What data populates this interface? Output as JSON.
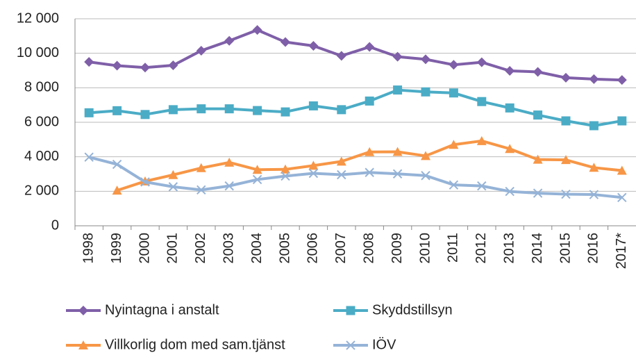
{
  "chart_data": {
    "type": "line",
    "categories": [
      "1998",
      "1999",
      "2000",
      "2001",
      "2002",
      "2003",
      "2004",
      "2005",
      "2006",
      "2007",
      "2008",
      "2009",
      "2010",
      "2011",
      "2012",
      "2013",
      "2014",
      "2015",
      "2016",
      "2017*"
    ],
    "series": [
      {
        "name": "Nyintagna i anstalt",
        "color": "#7f5fa8",
        "marker": "diamond",
        "values": [
          9500,
          9280,
          9170,
          9300,
          10150,
          10720,
          11350,
          10650,
          10430,
          9850,
          10370,
          9800,
          9650,
          9330,
          9480,
          8980,
          8920,
          8580,
          8500,
          8450
        ]
      },
      {
        "name": "Skyddstillsyn",
        "color": "#4bacc6",
        "marker": "square",
        "values": [
          6550,
          6670,
          6450,
          6730,
          6780,
          6780,
          6680,
          6600,
          6950,
          6730,
          7230,
          7870,
          7760,
          7700,
          7200,
          6830,
          6420,
          6080,
          5800,
          6080
        ]
      },
      {
        "name": "Villkorlig dom med sam.tjänst",
        "color": "#f79646",
        "marker": "triangle",
        "values": [
          null,
          2050,
          2580,
          2950,
          3350,
          3670,
          3250,
          3270,
          3490,
          3730,
          4280,
          4290,
          4050,
          4700,
          4920,
          4460,
          3840,
          3820,
          3370,
          3200
        ]
      },
      {
        "name": "IÖV",
        "color": "#95b3d7",
        "marker": "x",
        "values": [
          3980,
          3560,
          2540,
          2260,
          2080,
          2310,
          2680,
          2880,
          3040,
          2960,
          3090,
          3010,
          2910,
          2370,
          2310,
          1990,
          1890,
          1830,
          1810,
          1640
        ]
      }
    ],
    "ylim": [
      0,
      12000
    ],
    "yticks": [
      0,
      {
        "value": 2000,
        "label": "2 000"
      },
      {
        "value": 4000,
        "label": "4 000"
      },
      {
        "value": 6000,
        "label": "6 000"
      },
      {
        "value": 8000,
        "label": "8 000"
      },
      {
        "value": 10000,
        "label": "10 000"
      },
      {
        "value": 12000,
        "label": "12 000"
      }
    ],
    "grid": true
  }
}
